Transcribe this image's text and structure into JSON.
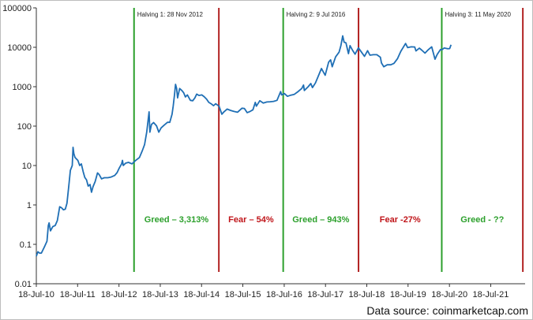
{
  "chart_data": {
    "type": "line",
    "title": "",
    "xlabel": "",
    "ylabel": "",
    "y_scale": "log",
    "ylim": [
      0.01,
      100000
    ],
    "y_ticks": [
      {
        "value": 0.01,
        "label": "0.01"
      },
      {
        "value": 0.1,
        "label": "0.1"
      },
      {
        "value": 1,
        "label": "1"
      },
      {
        "value": 10,
        "label": "10"
      },
      {
        "value": 100,
        "label": "100"
      },
      {
        "value": 1000,
        "label": "1000"
      },
      {
        "value": 10000,
        "label": "10000"
      },
      {
        "value": 100000,
        "label": "100000"
      }
    ],
    "xlim": [
      "2010-07-18",
      "2022-05-18"
    ],
    "x_ticks": [
      {
        "value": "2010-07-18",
        "label": "18-Jul-10"
      },
      {
        "value": "2011-07-18",
        "label": "18-Jul-11"
      },
      {
        "value": "2012-07-18",
        "label": "18-Jul-12"
      },
      {
        "value": "2013-07-18",
        "label": "18-Jul-13"
      },
      {
        "value": "2014-07-18",
        "label": "18-Jul-14"
      },
      {
        "value": "2015-07-18",
        "label": "18-Jul-15"
      },
      {
        "value": "2016-07-18",
        "label": "18-Jul-16"
      },
      {
        "value": "2017-07-18",
        "label": "18-Jul-17"
      },
      {
        "value": "2018-07-18",
        "label": "18-Jul-18"
      },
      {
        "value": "2019-07-18",
        "label": "18-Jul-19"
      },
      {
        "value": "2020-07-18",
        "label": "18-Jul-20"
      },
      {
        "value": "2021-07-18",
        "label": "18-Jul-21"
      }
    ],
    "grid": false,
    "series": [
      {
        "color": "#1f6fb5",
        "points": [
          [
            "2010-07-18",
            0.05
          ],
          [
            "2010-08-01",
            0.065
          ],
          [
            "2010-08-15",
            0.06
          ],
          [
            "2010-09-01",
            0.06
          ],
          [
            "2010-10-01",
            0.09
          ],
          [
            "2010-10-20",
            0.12
          ],
          [
            "2010-11-01",
            0.3
          ],
          [
            "2010-11-08",
            0.35
          ],
          [
            "2010-11-20",
            0.22
          ],
          [
            "2010-12-10",
            0.28
          ],
          [
            "2011-01-01",
            0.3
          ],
          [
            "2011-01-20",
            0.4
          ],
          [
            "2011-02-10",
            0.9
          ],
          [
            "2011-02-25",
            0.85
          ],
          [
            "2011-03-15",
            0.75
          ],
          [
            "2011-03-31",
            0.78
          ],
          [
            "2011-04-15",
            1.1
          ],
          [
            "2011-05-01",
            3.0
          ],
          [
            "2011-05-15",
            7.5
          ],
          [
            "2011-06-01",
            10
          ],
          [
            "2011-06-08",
            29
          ],
          [
            "2011-06-15",
            20
          ],
          [
            "2011-06-25",
            16
          ],
          [
            "2011-07-05",
            15
          ],
          [
            "2011-07-20",
            13.5
          ],
          [
            "2011-08-05",
            10
          ],
          [
            "2011-08-20",
            11
          ],
          [
            "2011-09-05",
            7
          ],
          [
            "2011-09-20",
            5
          ],
          [
            "2011-10-05",
            4.3
          ],
          [
            "2011-10-20",
            3
          ],
          [
            "2011-11-05",
            3.3
          ],
          [
            "2011-11-18",
            2.1
          ],
          [
            "2011-12-01",
            2.9
          ],
          [
            "2011-12-20",
            3.9
          ],
          [
            "2012-01-10",
            6.5
          ],
          [
            "2012-01-25",
            5.9
          ],
          [
            "2012-02-15",
            4.6
          ],
          [
            "2012-03-10",
            4.9
          ],
          [
            "2012-04-10",
            4.9
          ],
          [
            "2012-05-10",
            5.1
          ],
          [
            "2012-06-10",
            5.6
          ],
          [
            "2012-07-01",
            6.6
          ],
          [
            "2012-07-20",
            8.6
          ],
          [
            "2012-08-10",
            11
          ],
          [
            "2012-08-18",
            13.5
          ],
          [
            "2012-08-25",
            10
          ],
          [
            "2012-09-15",
            11.5
          ],
          [
            "2012-10-10",
            12
          ],
          [
            "2012-11-10",
            11
          ],
          [
            "2012-12-10",
            13.3
          ],
          [
            "2013-01-15",
            16
          ],
          [
            "2013-02-10",
            24
          ],
          [
            "2013-03-01",
            34
          ],
          [
            "2013-03-20",
            70
          ],
          [
            "2013-04-10",
            230
          ],
          [
            "2013-04-17",
            70
          ],
          [
            "2013-05-01",
            110
          ],
          [
            "2013-05-20",
            123
          ],
          [
            "2013-06-15",
            102
          ],
          [
            "2013-07-05",
            70
          ],
          [
            "2013-07-25",
            90
          ],
          [
            "2013-08-20",
            105
          ],
          [
            "2013-09-20",
            125
          ],
          [
            "2013-10-10",
            125
          ],
          [
            "2013-10-30",
            200
          ],
          [
            "2013-11-10",
            330
          ],
          [
            "2013-11-20",
            600
          ],
          [
            "2013-11-30",
            1150
          ],
          [
            "2013-12-10",
            900
          ],
          [
            "2013-12-18",
            520
          ],
          [
            "2014-01-05",
            900
          ],
          [
            "2014-01-25",
            800
          ],
          [
            "2014-02-10",
            700
          ],
          [
            "2014-02-25",
            550
          ],
          [
            "2014-03-15",
            620
          ],
          [
            "2014-04-10",
            450
          ],
          [
            "2014-05-01",
            440
          ],
          [
            "2014-05-20",
            520
          ],
          [
            "2014-06-05",
            650
          ],
          [
            "2014-06-25",
            600
          ],
          [
            "2014-07-20",
            620
          ],
          [
            "2014-08-10",
            560
          ],
          [
            "2014-09-01",
            480
          ],
          [
            "2014-09-20",
            400
          ],
          [
            "2014-10-10",
            370
          ],
          [
            "2014-11-01",
            330
          ],
          [
            "2014-11-20",
            370
          ],
          [
            "2014-12-20",
            320
          ],
          [
            "2015-01-14",
            200
          ],
          [
            "2015-02-01",
            230
          ],
          [
            "2015-03-01",
            270
          ],
          [
            "2015-04-01",
            250
          ],
          [
            "2015-05-01",
            235
          ],
          [
            "2015-06-01",
            225
          ],
          [
            "2015-07-10",
            285
          ],
          [
            "2015-08-01",
            280
          ],
          [
            "2015-08-25",
            220
          ],
          [
            "2015-09-20",
            235
          ],
          [
            "2015-10-15",
            260
          ],
          [
            "2015-11-05",
            400
          ],
          [
            "2015-11-15",
            320
          ],
          [
            "2015-12-15",
            440
          ],
          [
            "2016-01-15",
            385
          ],
          [
            "2016-02-15",
            410
          ],
          [
            "2016-03-15",
            415
          ],
          [
            "2016-04-15",
            425
          ],
          [
            "2016-05-15",
            450
          ],
          [
            "2016-06-16",
            750
          ],
          [
            "2016-06-25",
            620
          ],
          [
            "2016-07-20",
            670
          ],
          [
            "2016-08-15",
            570
          ],
          [
            "2016-09-15",
            610
          ],
          [
            "2016-10-15",
            640
          ],
          [
            "2016-11-15",
            740
          ],
          [
            "2016-12-20",
            900
          ],
          [
            "2017-01-05",
            1100
          ],
          [
            "2017-01-12",
            800
          ],
          [
            "2017-02-15",
            1000
          ],
          [
            "2017-03-10",
            1200
          ],
          [
            "2017-03-25",
            950
          ],
          [
            "2017-04-20",
            1250
          ],
          [
            "2017-05-20",
            2000
          ],
          [
            "2017-06-12",
            2900
          ],
          [
            "2017-07-15",
            1950
          ],
          [
            "2017-08-15",
            4200
          ],
          [
            "2017-09-01",
            4800
          ],
          [
            "2017-09-15",
            3200
          ],
          [
            "2017-10-15",
            5700
          ],
          [
            "2017-11-15",
            7500
          ],
          [
            "2017-12-01",
            11000
          ],
          [
            "2017-12-17",
            19500
          ],
          [
            "2017-12-30",
            13500
          ],
          [
            "2018-01-15",
            13000
          ],
          [
            "2018-02-06",
            6900
          ],
          [
            "2018-02-20",
            11000
          ],
          [
            "2018-03-15",
            8300
          ],
          [
            "2018-04-06",
            6700
          ],
          [
            "2018-05-05",
            9700
          ],
          [
            "2018-06-01",
            7500
          ],
          [
            "2018-06-28",
            5900
          ],
          [
            "2018-07-25",
            8200
          ],
          [
            "2018-08-15",
            6300
          ],
          [
            "2018-09-15",
            6500
          ],
          [
            "2018-10-15",
            6500
          ],
          [
            "2018-11-15",
            5600
          ],
          [
            "2018-11-25",
            4000
          ],
          [
            "2018-12-15",
            3200
          ],
          [
            "2019-01-15",
            3600
          ],
          [
            "2019-02-15",
            3600
          ],
          [
            "2019-03-15",
            3900
          ],
          [
            "2019-04-15",
            5100
          ],
          [
            "2019-05-15",
            7900
          ],
          [
            "2019-06-26",
            12500
          ],
          [
            "2019-07-15",
            9800
          ],
          [
            "2019-08-15",
            10300
          ],
          [
            "2019-09-15",
            10200
          ],
          [
            "2019-09-26",
            8100
          ],
          [
            "2019-10-26",
            9500
          ],
          [
            "2019-11-15",
            8500
          ],
          [
            "2019-12-15",
            7100
          ],
          [
            "2020-01-15",
            8800
          ],
          [
            "2020-02-12",
            10300
          ],
          [
            "2020-03-12",
            5000
          ],
          [
            "2020-04-01",
            6600
          ],
          [
            "2020-04-30",
            8800
          ],
          [
            "2020-05-11",
            8600
          ],
          [
            "2020-06-01",
            9600
          ],
          [
            "2020-07-01",
            9200
          ],
          [
            "2020-07-20",
            9300
          ],
          [
            "2020-08-01",
            11600
          ]
        ]
      }
    ],
    "markers": [
      {
        "date": "2012-11-28",
        "color": "#2ca02c",
        "label": "Halving 1: 28 Nov 2012"
      },
      {
        "date": "2014-12-18",
        "color": "#b22222",
        "label": ""
      },
      {
        "date": "2016-07-09",
        "color": "#2ca02c",
        "label": "Halving 2: 9 Jul 2016"
      },
      {
        "date": "2018-05-06",
        "color": "#b22222",
        "label": ""
      },
      {
        "date": "2020-05-11",
        "color": "#2ca02c",
        "label": "Halving 3: 11 May 2020"
      },
      {
        "date": "2022-04-28",
        "color": "#b22222",
        "label": ""
      }
    ],
    "annotations": [
      {
        "text": "Greed – 3,313%",
        "color": "#2ca02c",
        "from": "2012-11-28",
        "to": "2014-12-18"
      },
      {
        "text": "Fear – 54%",
        "color": "#c0151a",
        "from": "2014-12-18",
        "to": "2016-07-09"
      },
      {
        "text": "Greed – 943%",
        "color": "#2ca02c",
        "from": "2016-07-09",
        "to": "2018-05-06"
      },
      {
        "text": "Fear -27%",
        "color": "#c0151a",
        "from": "2018-05-06",
        "to": "2020-05-11"
      },
      {
        "text": "Greed - ??",
        "color": "#2ca02c",
        "from": "2020-05-11",
        "to": "2022-04-28"
      }
    ]
  },
  "source_text": "Data source: coinmarketcap.com"
}
